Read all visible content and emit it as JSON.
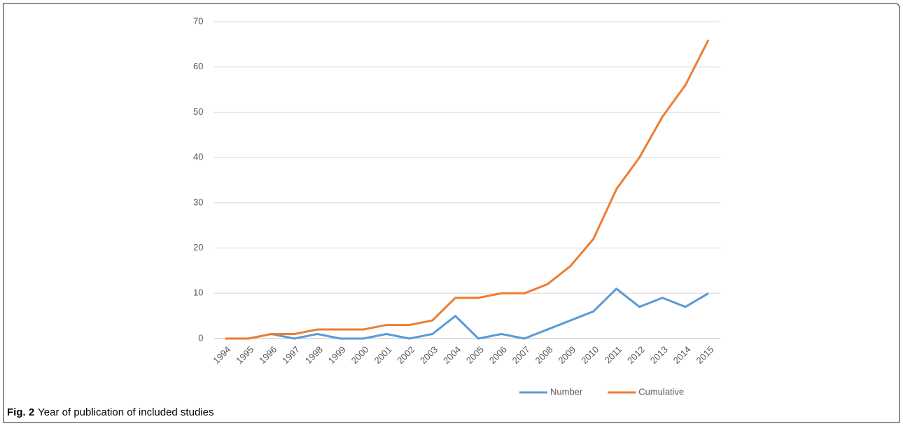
{
  "chart_data": {
    "type": "line",
    "categories": [
      "1994",
      "1995",
      "1996",
      "1997",
      "1998",
      "1999",
      "2000",
      "2001",
      "2002",
      "2003",
      "2004",
      "2005",
      "2006",
      "2007",
      "2008",
      "2009",
      "2010",
      "2011",
      "2012",
      "2013",
      "2014",
      "2015"
    ],
    "series": [
      {
        "name": "Number",
        "color": "#5b9bd5",
        "values": [
          0,
          0,
          1,
          0,
          1,
          0,
          0,
          1,
          0,
          1,
          5,
          0,
          1,
          0,
          2,
          4,
          6,
          11,
          7,
          9,
          7,
          10
        ]
      },
      {
        "name": "Cumulative",
        "color": "#ed7d31",
        "values": [
          0,
          0,
          1,
          1,
          2,
          2,
          2,
          3,
          3,
          4,
          9,
          9,
          10,
          10,
          12,
          16,
          22,
          33,
          40,
          49,
          56,
          66
        ]
      }
    ],
    "ylim": [
      0,
      70
    ],
    "yticks": [
      0,
      10,
      20,
      30,
      40,
      50,
      60,
      70
    ],
    "grid": true,
    "legend": "bottom",
    "caption_label": "Fig. 2",
    "caption": "Year of publication of included studies"
  }
}
